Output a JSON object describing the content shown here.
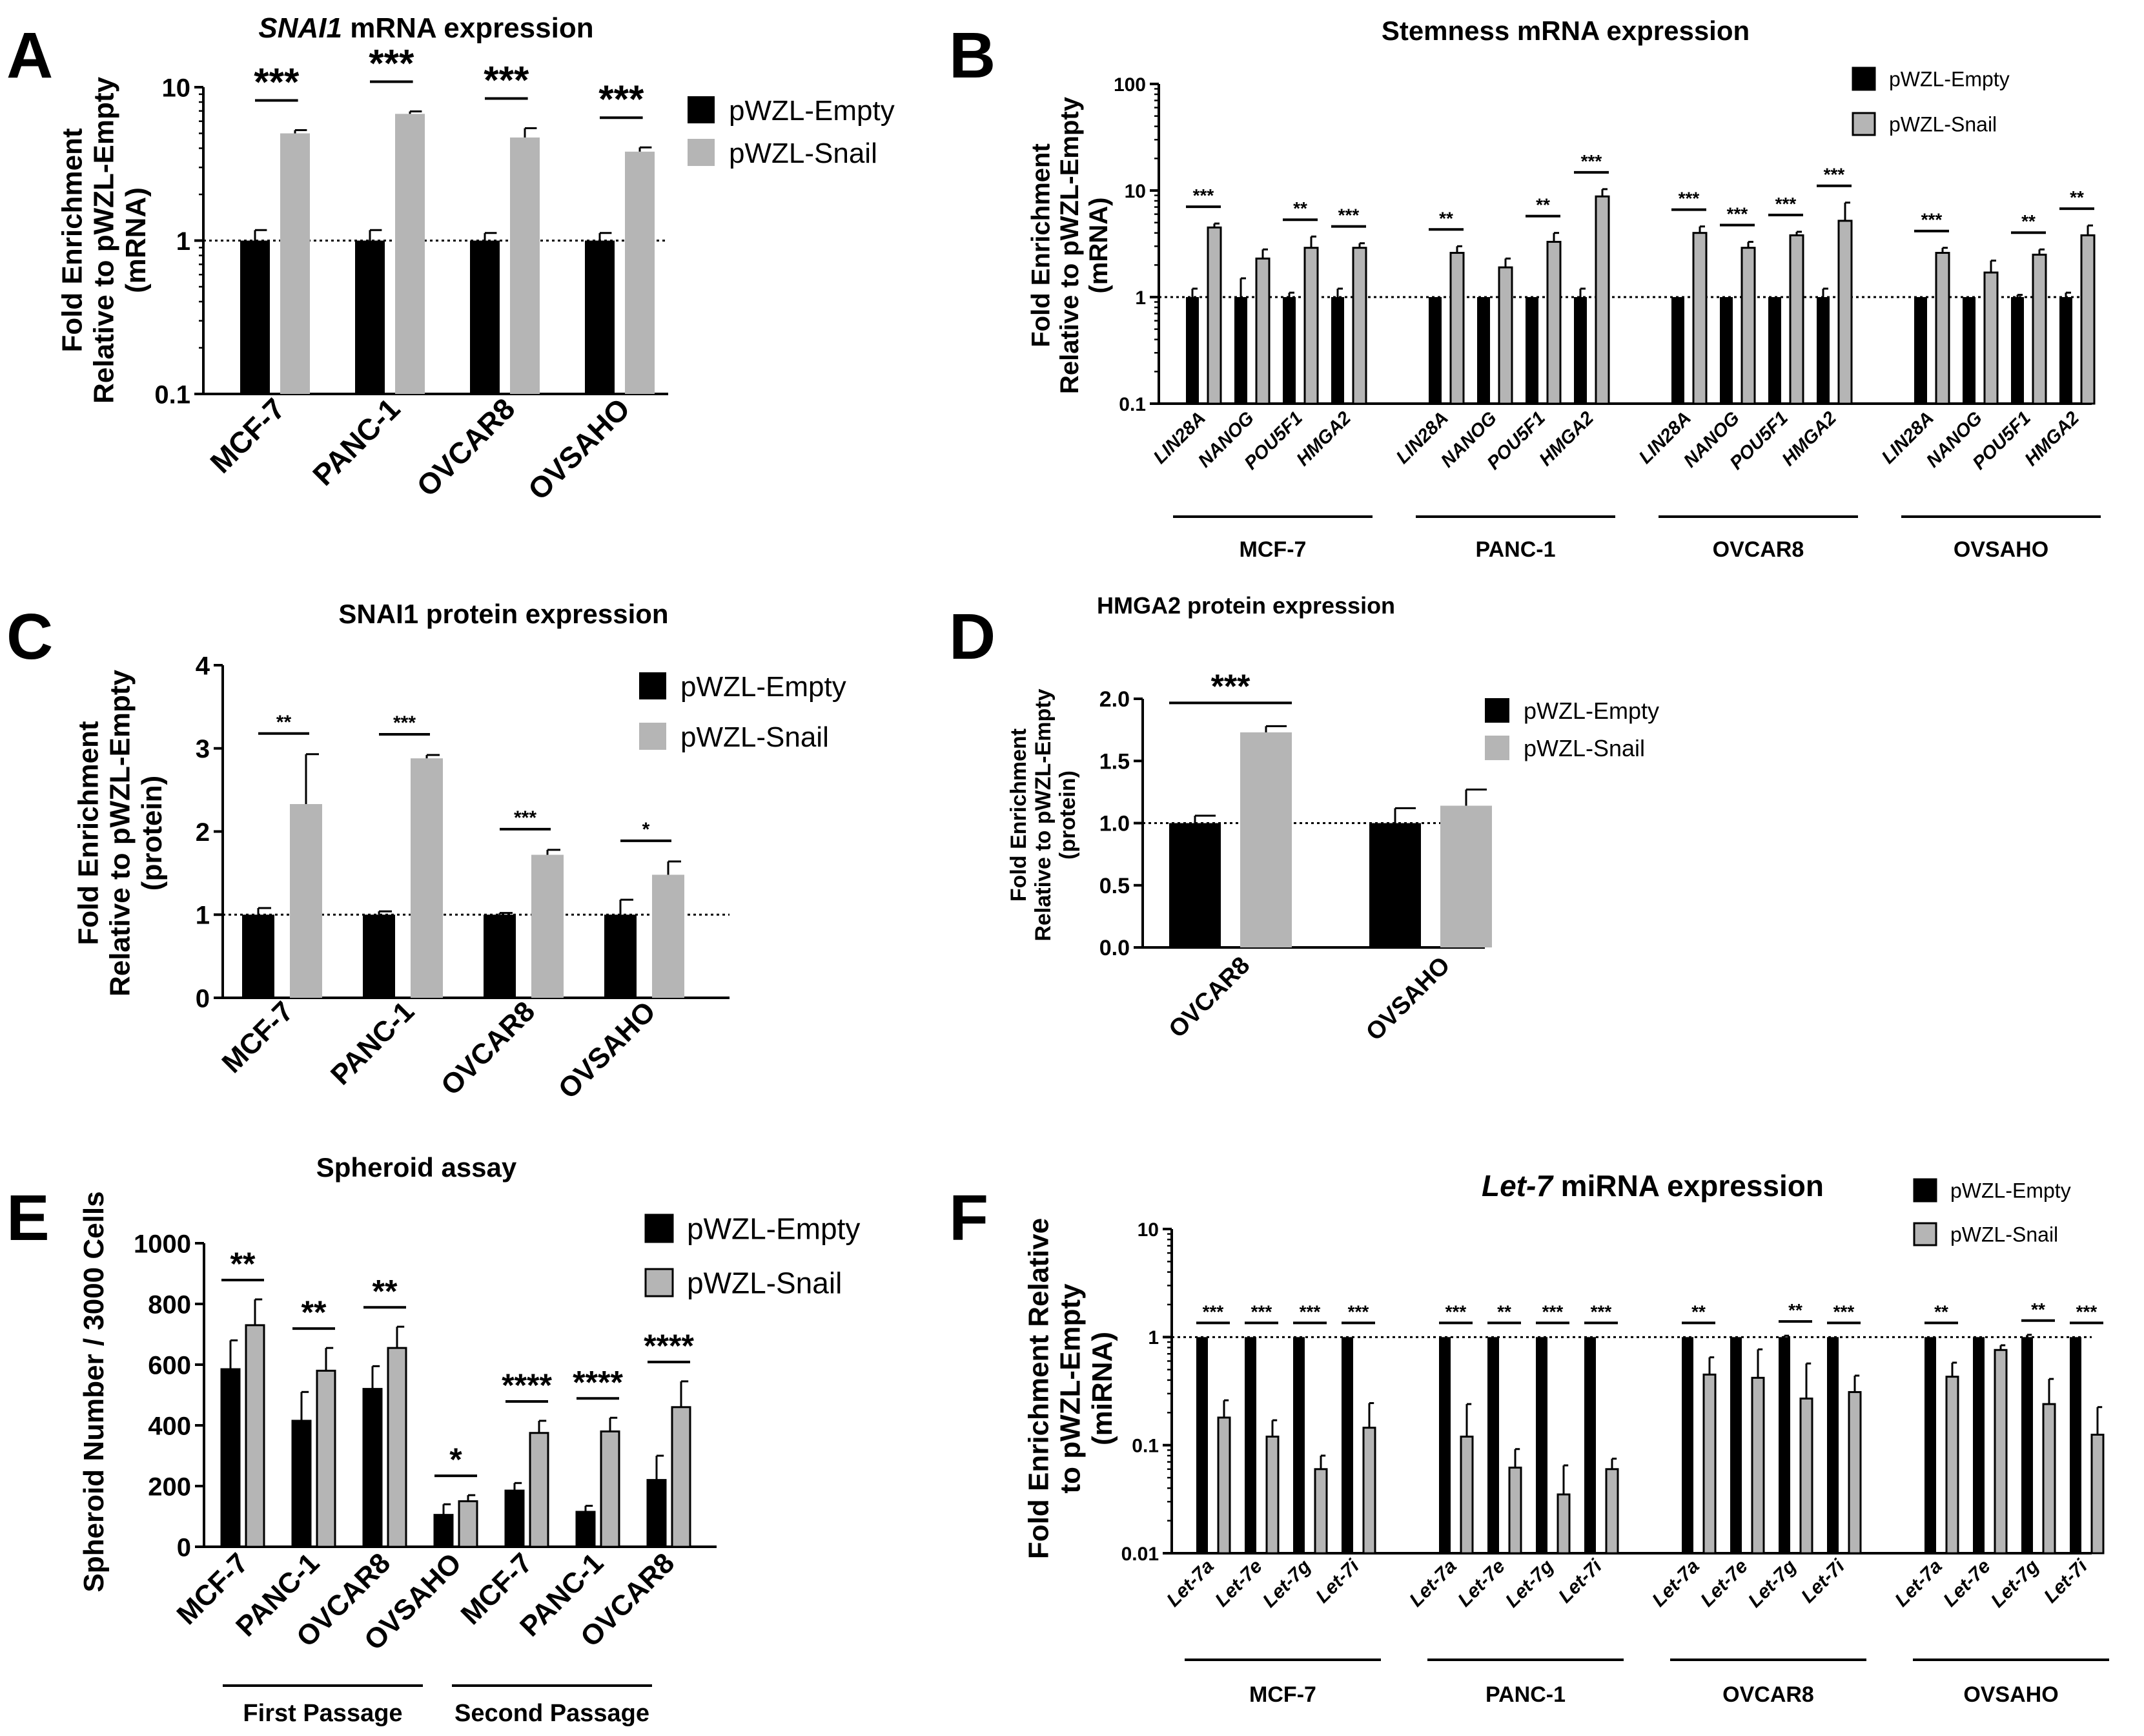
{
  "colors": {
    "empty": "#000000",
    "snail": "#b5b5b5",
    "axis": "#000000"
  },
  "chart_data": [
    {
      "panel": "A",
      "type": "bar",
      "scale": "log",
      "title_italic": "SNAI1",
      "title_rest": " mRNA expression",
      "ylabel": [
        "Fold Enrichment",
        "Relative to pWZL-Empty",
        "(mRNA)"
      ],
      "ylim": [
        0.1,
        10
      ],
      "yticks": [
        "0.1",
        "1",
        "10"
      ],
      "yticks_values": [
        0.1,
        1,
        10
      ],
      "legend": [
        "pWZL-Empty",
        "pWZL-Snail"
      ],
      "categories": [
        "MCF-7",
        "PANC-1",
        "OVCAR8",
        "OVSAHO"
      ],
      "series": [
        {
          "name": "pWZL-Empty",
          "values": [
            1,
            1,
            1,
            1
          ],
          "errors": [
            0.17,
            0.17,
            0.12,
            0.12
          ]
        },
        {
          "name": "pWZL-Snail",
          "values": [
            5.0,
            6.7,
            4.7,
            3.8
          ],
          "errors": [
            0.25,
            0.25,
            0.7,
            0.25
          ]
        }
      ],
      "significance": [
        "***",
        "***",
        "***",
        "***"
      ]
    },
    {
      "panel": "B",
      "type": "bar",
      "scale": "log",
      "title": "Stemness mRNA expression",
      "ylabel": [
        "Fold Enrichment",
        "Relative to pWZL-Empty",
        "(mRNA)"
      ],
      "ylim": [
        0.1,
        100
      ],
      "yticks": [
        "0.1",
        "1",
        "10",
        "100"
      ],
      "yticks_values": [
        0.1,
        1,
        10,
        100
      ],
      "legend": [
        "pWZL-Empty",
        "pWZL-Snail"
      ],
      "groups": [
        "MCF-7",
        "PANC-1",
        "OVCAR8",
        "OVSAHO"
      ],
      "genes": [
        "LIN28A",
        "NANOG",
        "POU5F1",
        "HMGA2"
      ],
      "series": [
        {
          "name": "pWZL-Empty",
          "values": [
            1,
            1,
            1,
            1,
            1,
            1,
            1,
            1,
            1,
            1,
            1,
            1,
            1,
            1,
            1,
            1
          ],
          "errors": [
            0.2,
            0.5,
            0.1,
            0.2,
            0,
            0,
            0,
            0.2,
            0,
            0,
            0,
            0.2,
            0,
            0,
            0.05,
            0.1
          ]
        },
        {
          "name": "pWZL-Snail",
          "values": [
            4.5,
            2.3,
            2.9,
            2.9,
            2.6,
            1.9,
            3.3,
            8.8,
            4.0,
            2.9,
            3.8,
            5.2,
            2.6,
            1.7,
            2.5,
            3.8
          ],
          "errors": [
            0.4,
            0.5,
            0.8,
            0.3,
            0.4,
            0.4,
            0.7,
            1.5,
            0.6,
            0.4,
            0.3,
            2.5,
            0.3,
            0.5,
            0.3,
            0.9
          ]
        }
      ],
      "significance": [
        "***",
        "",
        "**",
        "***",
        "**",
        "",
        "**",
        "***",
        "***",
        "***",
        "***",
        "***",
        "***",
        "",
        "**",
        "**"
      ]
    },
    {
      "panel": "C",
      "type": "bar",
      "scale": "linear",
      "title": "SNAI1 protein expression",
      "ylabel": [
        "Fold Enrichment",
        "Relative to pWZL-Empty",
        "(protein)"
      ],
      "ylim": [
        0,
        4
      ],
      "yticks": [
        "0",
        "1",
        "2",
        "3",
        "4"
      ],
      "yticks_values": [
        0,
        1,
        2,
        3,
        4
      ],
      "legend": [
        "pWZL-Empty",
        "pWZL-Snail"
      ],
      "categories": [
        "MCF-7",
        "PANC-1",
        "OVCAR8",
        "OVSAHO"
      ],
      "series": [
        {
          "name": "pWZL-Empty",
          "values": [
            1.0,
            1.0,
            1.0,
            1.0
          ],
          "errors": [
            0.08,
            0.04,
            0.02,
            0.18
          ]
        },
        {
          "name": "pWZL-Snail",
          "values": [
            2.33,
            2.88,
            1.72,
            1.48
          ],
          "errors": [
            0.6,
            0.04,
            0.06,
            0.16
          ]
        }
      ],
      "significance": [
        "**",
        "***",
        "***",
        "*"
      ]
    },
    {
      "panel": "D",
      "type": "bar",
      "scale": "linear",
      "title": "HMGA2 protein expression",
      "ylabel": [
        "Fold Enrichment",
        "Relative to pWZL-Empty",
        "(protein)"
      ],
      "ylim": [
        0,
        2.0
      ],
      "yticks": [
        "0.0",
        "0.5",
        "1.0",
        "1.5",
        "2.0"
      ],
      "yticks_values": [
        0,
        0.5,
        1.0,
        1.5,
        2.0
      ],
      "legend": [
        "pWZL-Empty",
        "pWZL-Snail"
      ],
      "categories": [
        "OVCAR8",
        "OVSAHO"
      ],
      "series": [
        {
          "name": "pWZL-Empty",
          "values": [
            1.0,
            1.0
          ],
          "errors": [
            0.06,
            0.12
          ]
        },
        {
          "name": "pWZL-Snail",
          "values": [
            1.73,
            1.14
          ],
          "errors": [
            0.05,
            0.13
          ]
        }
      ],
      "significance": [
        "***",
        ""
      ]
    },
    {
      "panel": "E",
      "type": "bar",
      "scale": "linear",
      "title": "Spheroid assay",
      "ylabel": [
        "Spheroid Number / 3000 Cells"
      ],
      "ylim": [
        0,
        1000
      ],
      "yticks": [
        "0",
        "200",
        "400",
        "600",
        "800",
        "1000"
      ],
      "yticks_values": [
        0,
        200,
        400,
        600,
        800,
        1000
      ],
      "legend": [
        "pWZL-Empty",
        "pWZL-Snail"
      ],
      "categories": [
        "MCF-7",
        "PANC-1",
        "OVCAR8",
        "OVSAHO",
        "MCF-7",
        "PANC-1",
        "OVCAR8"
      ],
      "group_labels": [
        "First Passage",
        "Second Passage"
      ],
      "series": [
        {
          "name": "pWZL-Empty",
          "values": [
            585,
            415,
            520,
            105,
            185,
            115,
            220
          ],
          "errors": [
            95,
            95,
            75,
            35,
            25,
            20,
            80
          ]
        },
        {
          "name": "pWZL-Snail",
          "values": [
            730,
            580,
            655,
            150,
            375,
            380,
            460
          ],
          "errors": [
            85,
            75,
            70,
            20,
            40,
            45,
            85
          ]
        }
      ],
      "significance": [
        "**",
        "**",
        "**",
        "*",
        "****",
        "****",
        "****"
      ]
    },
    {
      "panel": "F",
      "type": "bar",
      "scale": "log",
      "title_italic": "Let-7",
      "title_rest": " miRNA expression",
      "ylabel": [
        "Fold Enrichment Relative",
        "to pWZL-Empty",
        "(miRNA)"
      ],
      "ylim": [
        0.01,
        10
      ],
      "yticks": [
        "0.01",
        "0.1",
        "1",
        "10"
      ],
      "yticks_values": [
        0.01,
        0.1,
        1,
        10
      ],
      "legend": [
        "pWZL-Empty",
        "pWZL-Snail"
      ],
      "groups": [
        "MCF-7",
        "PANC-1",
        "OVCAR8",
        "OVSAHO"
      ],
      "genes": [
        "Let-7a",
        "Let-7e",
        "Let-7g",
        "Let-7i"
      ],
      "series": [
        {
          "name": "pWZL-Empty",
          "values": [
            1,
            1,
            1,
            1,
            1,
            1,
            1,
            1,
            1,
            1,
            1,
            1,
            1,
            1,
            1,
            1
          ],
          "errors": [
            0,
            0,
            0,
            0,
            0,
            0,
            0,
            0,
            0,
            0,
            0.03,
            0,
            0,
            0,
            0.05,
            0
          ]
        },
        {
          "name": "pWZL-Snail",
          "values": [
            0.18,
            0.12,
            0.06,
            0.145,
            0.12,
            0.062,
            0.035,
            0.06,
            0.45,
            0.42,
            0.27,
            0.31,
            0.43,
            0.76,
            0.24,
            0.125
          ],
          "errors": [
            0.08,
            0.05,
            0.02,
            0.1,
            0.12,
            0.03,
            0.03,
            0.015,
            0.2,
            0.35,
            0.3,
            0.13,
            0.15,
            0.08,
            0.17,
            0.1
          ]
        }
      ],
      "significance": [
        "***",
        "***",
        "***",
        "***",
        "***",
        "**",
        "***",
        "***",
        "**",
        "",
        "**",
        "***",
        "**",
        "",
        "**",
        "***"
      ]
    }
  ]
}
